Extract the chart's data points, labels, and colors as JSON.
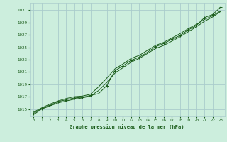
{
  "title": "Graphe pression niveau de la mer (hPa)",
  "background_color": "#cceedd",
  "grid_color": "#aacccc",
  "line_color": "#1a5c1a",
  "marker_color": "#1a5c1a",
  "xlim": [
    -0.5,
    23.5
  ],
  "ylim": [
    1013.8,
    1032.2
  ],
  "yticks": [
    1015,
    1017,
    1019,
    1021,
    1023,
    1025,
    1027,
    1029,
    1031
  ],
  "xticks": [
    0,
    1,
    2,
    3,
    4,
    5,
    6,
    7,
    8,
    9,
    10,
    11,
    12,
    13,
    14,
    15,
    16,
    17,
    18,
    19,
    20,
    21,
    22,
    23
  ],
  "series1_x": [
    0,
    1,
    2,
    3,
    4,
    5,
    6,
    7,
    8,
    9,
    10,
    11,
    12,
    13,
    14,
    15,
    16,
    17,
    18,
    19,
    20,
    21,
    22,
    23
  ],
  "series1_y": [
    1014.3,
    1015.1,
    1015.6,
    1016.2,
    1016.5,
    1016.8,
    1016.9,
    1017.2,
    1017.5,
    1018.8,
    1021.2,
    1022.0,
    1022.9,
    1023.4,
    1024.2,
    1025.1,
    1025.6,
    1026.3,
    1026.9,
    1027.8,
    1028.5,
    1029.8,
    1030.3,
    1031.5
  ],
  "series2_x": [
    0,
    1,
    2,
    3,
    4,
    5,
    6,
    7,
    8,
    9,
    10,
    11,
    12,
    13,
    14,
    15,
    16,
    17,
    18,
    19,
    20,
    21,
    22,
    23
  ],
  "series2_y": [
    1014.1,
    1015.0,
    1015.5,
    1016.0,
    1016.3,
    1016.6,
    1016.8,
    1017.1,
    1018.0,
    1019.3,
    1020.8,
    1021.7,
    1022.6,
    1023.2,
    1024.0,
    1024.8,
    1025.3,
    1026.0,
    1026.7,
    1027.5,
    1028.3,
    1029.2,
    1029.9,
    1030.8
  ],
  "series3_x": [
    0,
    1,
    2,
    3,
    4,
    5,
    6,
    7,
    8,
    9,
    10,
    11,
    12,
    13,
    14,
    15,
    16,
    17,
    18,
    19,
    20,
    21,
    22,
    23
  ],
  "series3_y": [
    1014.5,
    1015.2,
    1015.8,
    1016.3,
    1016.7,
    1017.0,
    1017.1,
    1017.4,
    1018.6,
    1020.0,
    1021.5,
    1022.3,
    1023.2,
    1023.7,
    1024.5,
    1025.3,
    1025.8,
    1026.5,
    1027.2,
    1028.0,
    1028.7,
    1029.5,
    1030.1,
    1030.9
  ]
}
